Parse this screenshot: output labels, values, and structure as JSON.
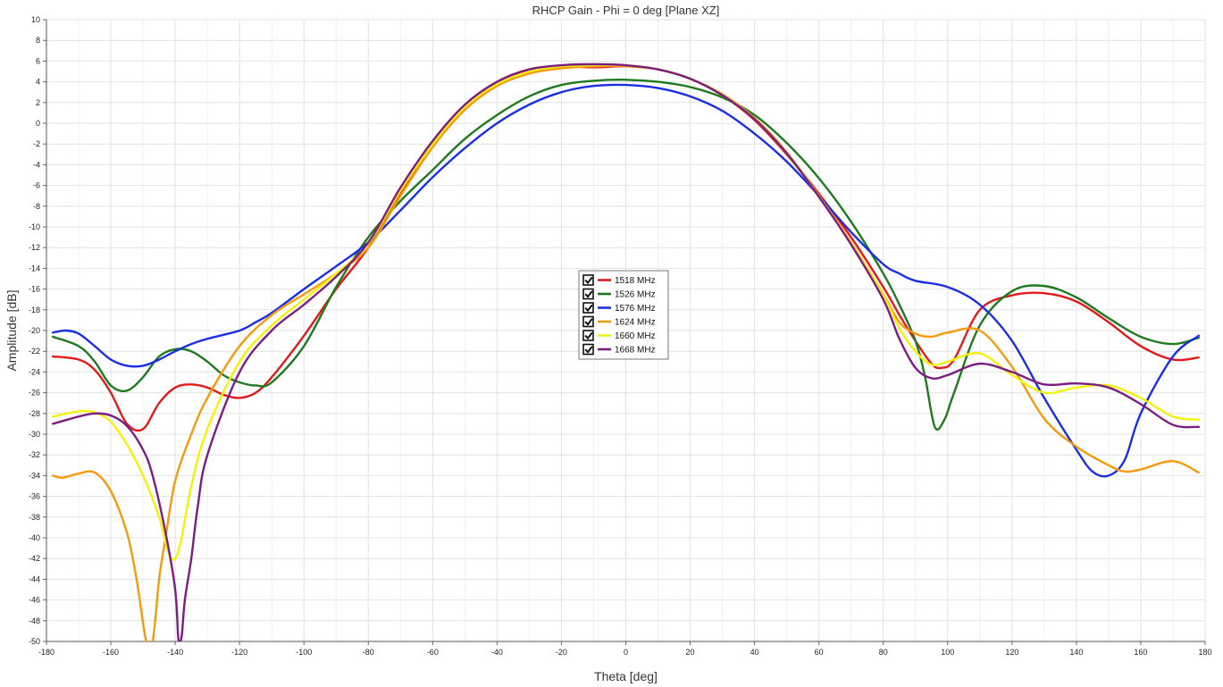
{
  "chart_data": {
    "type": "line",
    "title": "RHCP Gain - Phi = 0 deg [Plane XZ]",
    "xlabel": "Theta [deg]",
    "ylabel": "Amplitude [dB]",
    "xlim": [
      -180,
      180
    ],
    "ylim": [
      -50,
      10
    ],
    "xticks": [
      -180,
      -160,
      -140,
      -120,
      -100,
      -80,
      -60,
      -40,
      -20,
      0,
      20,
      40,
      60,
      80,
      100,
      120,
      140,
      160,
      180
    ],
    "xtick_labels": [
      "-180",
      "-160",
      "-140",
      "-120",
      "-100",
      "-80",
      "-60",
      "-40",
      "-20",
      "0",
      "20",
      "40",
      "60",
      "80",
      "100",
      "120",
      "140",
      "160",
      "180"
    ],
    "yticks": [
      10,
      8,
      6,
      4,
      2,
      0,
      -2,
      -4,
      -6,
      -8,
      -10,
      -12,
      -14,
      -16,
      -18,
      -20,
      -22,
      -24,
      -26,
      -28,
      -30,
      -32,
      -34,
      -36,
      -38,
      -40,
      -42,
      -44,
      -46,
      -48,
      -50
    ],
    "ytick_labels": [
      "10",
      "8",
      "6",
      "4",
      "2",
      "0",
      "-2",
      "-4",
      "-6",
      "-8",
      "-10",
      "-12",
      "-14",
      "-16",
      "-18",
      "-20",
      "-22",
      "-24",
      "-26",
      "-28",
      "-30",
      "-32",
      "-34",
      "-36",
      "-38",
      "-40",
      "-42",
      "-44",
      "-46",
      "-48",
      "-50"
    ],
    "grid": true,
    "legend_position": "center",
    "series": [
      {
        "name": "1518 MHz",
        "color": "#e31a1c",
        "x": [
          -178,
          -170,
          -165,
          -160,
          -155,
          -150,
          -145,
          -140,
          -135,
          -130,
          -125,
          -120,
          -115,
          -110,
          -100,
          -90,
          -80,
          -70,
          -60,
          -50,
          -40,
          -30,
          -20,
          -10,
          0,
          10,
          20,
          30,
          40,
          50,
          60,
          70,
          80,
          85,
          90,
          95,
          98,
          102,
          110,
          120,
          130,
          140,
          150,
          160,
          170,
          178
        ],
        "y": [
          -22.5,
          -22.8,
          -23.8,
          -26,
          -29,
          -29.5,
          -27,
          -25.5,
          -25.2,
          -25.5,
          -26.2,
          -26.5,
          -26,
          -24.5,
          -20.5,
          -16,
          -12,
          -6.8,
          -2,
          1.7,
          4,
          5.2,
          5.5,
          5.4,
          5.5,
          5.2,
          4.3,
          2.7,
          0.3,
          -3,
          -6.8,
          -11,
          -15.8,
          -18.5,
          -21,
          -23.2,
          -23.6,
          -22.8,
          -18,
          -16.6,
          -16.4,
          -17.2,
          -19.2,
          -21.5,
          -22.8,
          -22.6
        ]
      },
      {
        "name": "1526 MHz",
        "color": "#1f7a1f",
        "x": [
          -178,
          -170,
          -165,
          -160,
          -155,
          -150,
          -145,
          -140,
          -135,
          -130,
          -125,
          -120,
          -115,
          -110,
          -100,
          -90,
          -80,
          -70,
          -60,
          -50,
          -40,
          -30,
          -20,
          -10,
          0,
          10,
          20,
          30,
          40,
          50,
          60,
          70,
          80,
          85,
          90,
          93,
          96,
          99,
          102,
          110,
          120,
          130,
          140,
          150,
          160,
          170,
          178
        ],
        "y": [
          -20.6,
          -21.5,
          -23,
          -25.3,
          -25.8,
          -24.5,
          -22.5,
          -21.8,
          -22,
          -23,
          -24.3,
          -25,
          -25.3,
          -25,
          -21.5,
          -15.8,
          -11,
          -7.5,
          -4.5,
          -1.5,
          0.8,
          2.6,
          3.7,
          4.1,
          4.2,
          4,
          3.5,
          2.5,
          0.8,
          -1.9,
          -5.3,
          -9.5,
          -14.5,
          -17.5,
          -21,
          -24.5,
          -29.3,
          -28.6,
          -26,
          -19.5,
          -16.2,
          -15.7,
          -16.8,
          -18.8,
          -20.6,
          -21.3,
          -20.7
        ]
      },
      {
        "name": "1576 MHz",
        "color": "#1a2ee6",
        "x": [
          -178,
          -174,
          -170,
          -165,
          -160,
          -155,
          -150,
          -145,
          -140,
          -135,
          -130,
          -120,
          -115,
          -110,
          -100,
          -90,
          -80,
          -70,
          -60,
          -50,
          -40,
          -30,
          -20,
          -10,
          0,
          10,
          20,
          30,
          40,
          50,
          60,
          70,
          80,
          85,
          90,
          100,
          110,
          120,
          130,
          140,
          145,
          150,
          155,
          160,
          170,
          178
        ],
        "y": [
          -20.2,
          -20,
          -20.3,
          -21.5,
          -22.8,
          -23.4,
          -23.4,
          -22.8,
          -22,
          -21.3,
          -20.8,
          -20,
          -19.2,
          -18.3,
          -16,
          -13.8,
          -11.5,
          -8.4,
          -5.2,
          -2.4,
          0,
          1.8,
          3,
          3.6,
          3.7,
          3.4,
          2.6,
          1.2,
          -1,
          -3.7,
          -7,
          -10.5,
          -13.6,
          -14.5,
          -15.2,
          -15.8,
          -17.5,
          -21,
          -26.5,
          -31.5,
          -33.6,
          -34,
          -32.5,
          -28,
          -22.5,
          -20.5
        ]
      },
      {
        "name": "1624 MHz",
        "color": "#f59a0c",
        "x": [
          -178,
          -175,
          -170,
          -165,
          -160,
          -155,
          -152,
          -149,
          -147,
          -145,
          -143,
          -140,
          -135,
          -130,
          -120,
          -110,
          -100,
          -90,
          -80,
          -70,
          -60,
          -50,
          -40,
          -30,
          -20,
          -10,
          0,
          10,
          20,
          30,
          40,
          50,
          60,
          70,
          80,
          85,
          90,
          95,
          100,
          110,
          120,
          130,
          140,
          150,
          155,
          160,
          170,
          178
        ],
        "y": [
          -34,
          -34.2,
          -33.8,
          -33.7,
          -35.5,
          -39.5,
          -44,
          -50,
          -50,
          -44,
          -40,
          -34.5,
          -30,
          -26.5,
          -21.5,
          -18.5,
          -16.5,
          -14.5,
          -12,
          -7,
          -2.3,
          1.3,
          3.6,
          4.8,
          5.3,
          5.5,
          5.5,
          5.2,
          4.3,
          2.8,
          0.5,
          -2.8,
          -7,
          -11.5,
          -16.5,
          -19.2,
          -20.3,
          -20.6,
          -20.2,
          -20,
          -23.5,
          -28.5,
          -31.2,
          -33,
          -33.6,
          -33.4,
          -32.6,
          -33.7
        ]
      },
      {
        "name": "1660 MHz",
        "color": "#f2f20a",
        "x": [
          -178,
          -170,
          -165,
          -160,
          -155,
          -150,
          -145,
          -142,
          -140,
          -138,
          -135,
          -130,
          -120,
          -110,
          -100,
          -90,
          -80,
          -70,
          -60,
          -50,
          -40,
          -30,
          -20,
          -10,
          0,
          10,
          20,
          30,
          40,
          50,
          60,
          70,
          80,
          85,
          90,
          95,
          100,
          110,
          120,
          130,
          140,
          150,
          160,
          170,
          178
        ],
        "y": [
          -28.3,
          -27.8,
          -27.9,
          -28.8,
          -31,
          -34,
          -38,
          -41.5,
          -42,
          -40,
          -35,
          -29.5,
          -23,
          -19.5,
          -17,
          -14.5,
          -11.6,
          -6.5,
          -2,
          1.6,
          3.8,
          5,
          5.5,
          5.6,
          5.6,
          5.2,
          4.3,
          2.7,
          0.4,
          -2.9,
          -7.1,
          -11.6,
          -16.6,
          -19.8,
          -22,
          -23.3,
          -23,
          -22.2,
          -24.3,
          -26,
          -25.5,
          -25.3,
          -26.5,
          -28.3,
          -28.6
        ]
      },
      {
        "name": "1668 MHz",
        "color": "#7b1e82",
        "x": [
          -178,
          -170,
          -165,
          -160,
          -155,
          -150,
          -147,
          -143,
          -140,
          -139,
          -138,
          -137,
          -135,
          -133,
          -130,
          -120,
          -110,
          -100,
          -90,
          -80,
          -70,
          -60,
          -50,
          -40,
          -30,
          -20,
          -10,
          0,
          10,
          20,
          30,
          40,
          50,
          60,
          70,
          80,
          85,
          90,
          95,
          100,
          110,
          120,
          130,
          140,
          150,
          160,
          170,
          178
        ],
        "y": [
          -29,
          -28.3,
          -28,
          -28.2,
          -29.2,
          -31.5,
          -34,
          -39.5,
          -45,
          -49.8,
          -49.5,
          -46,
          -42,
          -37,
          -32,
          -24,
          -20,
          -17.5,
          -14.8,
          -11.5,
          -6.2,
          -1.7,
          1.8,
          4,
          5.2,
          5.6,
          5.7,
          5.6,
          5.2,
          4.3,
          2.7,
          0.4,
          -2.9,
          -7.1,
          -11.7,
          -17,
          -20.8,
          -23.6,
          -24.6,
          -24.3,
          -23.2,
          -24,
          -25.2,
          -25.1,
          -25.5,
          -27.1,
          -29.1,
          -29.3
        ]
      }
    ]
  }
}
